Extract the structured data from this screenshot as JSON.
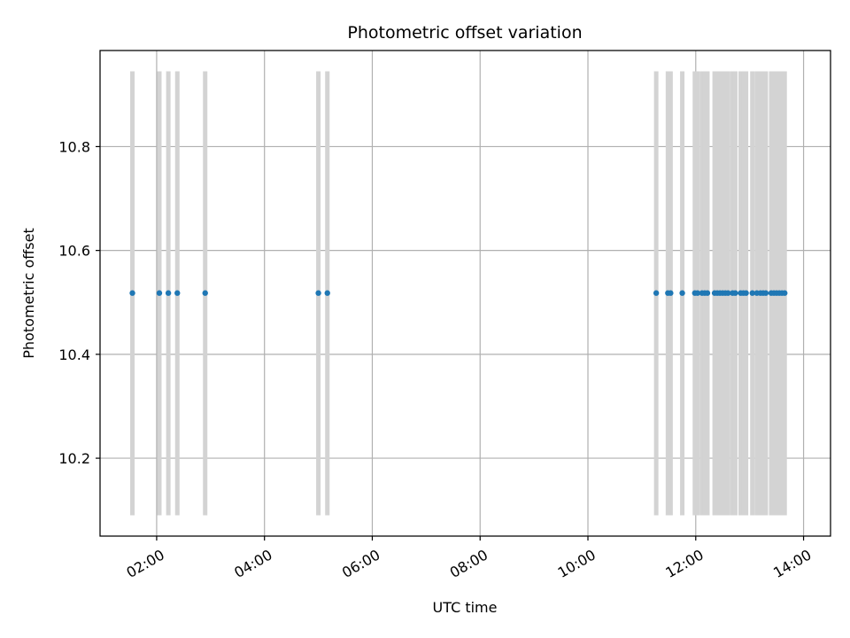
{
  "chart_data": {
    "type": "scatter",
    "title": "Photometric offset variation",
    "xlabel": "UTC time",
    "ylabel": "Photometric offset",
    "x_format": "HH:MM",
    "xlim": [
      "00:57",
      "14:30"
    ],
    "ylim": [
      10.05,
      10.985
    ],
    "x_ticks": [
      "02:00",
      "04:00",
      "06:00",
      "08:00",
      "10:00",
      "12:00",
      "14:00"
    ],
    "y_ticks": [
      10.2,
      10.4,
      10.6,
      10.8
    ],
    "y_tick_labels": [
      "10.2",
      "10.4",
      "10.6",
      "10.8"
    ],
    "grid": true,
    "colors": {
      "points": "#1f77b4",
      "error_bars": "#d3d3d3",
      "grid": "#b0b0b0"
    },
    "series": [
      {
        "points": [
          {
            "x": "01:33",
            "y": 10.518,
            "y_low": 10.09,
            "y_high": 10.945
          },
          {
            "x": "02:03",
            "y": 10.518,
            "y_low": 10.09,
            "y_high": 10.945
          },
          {
            "x": "02:13",
            "y": 10.518,
            "y_low": 10.09,
            "y_high": 10.945
          },
          {
            "x": "02:23",
            "y": 10.518,
            "y_low": 10.09,
            "y_high": 10.945
          },
          {
            "x": "02:54",
            "y": 10.518,
            "y_low": 10.09,
            "y_high": 10.945
          },
          {
            "x": "05:00",
            "y": 10.518,
            "y_low": 10.09,
            "y_high": 10.945
          },
          {
            "x": "05:10",
            "y": 10.518,
            "y_low": 10.09,
            "y_high": 10.945
          },
          {
            "x": "11:16",
            "y": 10.518,
            "y_low": 10.09,
            "y_high": 10.945
          },
          {
            "x": "11:29",
            "y": 10.518,
            "y_low": 10.09,
            "y_high": 10.945
          },
          {
            "x": "11:32",
            "y": 10.518,
            "y_low": 10.09,
            "y_high": 10.945
          },
          {
            "x": "11:45",
            "y": 10.518,
            "y_low": 10.09,
            "y_high": 10.945
          },
          {
            "x": "11:59",
            "y": 10.518,
            "y_low": 10.09,
            "y_high": 10.945
          },
          {
            "x": "12:02",
            "y": 10.518,
            "y_low": 10.09,
            "y_high": 10.945
          },
          {
            "x": "12:07",
            "y": 10.518,
            "y_low": 10.09,
            "y_high": 10.945
          },
          {
            "x": "12:10",
            "y": 10.518,
            "y_low": 10.09,
            "y_high": 10.945
          },
          {
            "x": "12:13",
            "y": 10.518,
            "y_low": 10.09,
            "y_high": 10.945
          },
          {
            "x": "12:21",
            "y": 10.518,
            "y_low": 10.09,
            "y_high": 10.945
          },
          {
            "x": "12:24",
            "y": 10.518,
            "y_low": 10.09,
            "y_high": 10.945
          },
          {
            "x": "12:27",
            "y": 10.518,
            "y_low": 10.09,
            "y_high": 10.945
          },
          {
            "x": "12:30",
            "y": 10.518,
            "y_low": 10.09,
            "y_high": 10.945
          },
          {
            "x": "12:33",
            "y": 10.518,
            "y_low": 10.09,
            "y_high": 10.945
          },
          {
            "x": "12:36",
            "y": 10.518,
            "y_low": 10.09,
            "y_high": 10.945
          },
          {
            "x": "12:41",
            "y": 10.518,
            "y_low": 10.09,
            "y_high": 10.945
          },
          {
            "x": "12:44",
            "y": 10.518,
            "y_low": 10.09,
            "y_high": 10.945
          },
          {
            "x": "12:50",
            "y": 10.518,
            "y_low": 10.09,
            "y_high": 10.945
          },
          {
            "x": "12:53",
            "y": 10.518,
            "y_low": 10.09,
            "y_high": 10.945
          },
          {
            "x": "12:56",
            "y": 10.518,
            "y_low": 10.09,
            "y_high": 10.945
          },
          {
            "x": "13:03",
            "y": 10.518,
            "y_low": 10.09,
            "y_high": 10.945
          },
          {
            "x": "13:08",
            "y": 10.518,
            "y_low": 10.09,
            "y_high": 10.945
          },
          {
            "x": "13:12",
            "y": 10.518,
            "y_low": 10.09,
            "y_high": 10.945
          },
          {
            "x": "13:15",
            "y": 10.518,
            "y_low": 10.09,
            "y_high": 10.945
          },
          {
            "x": "13:18",
            "y": 10.518,
            "y_low": 10.09,
            "y_high": 10.945
          },
          {
            "x": "13:24",
            "y": 10.518,
            "y_low": 10.09,
            "y_high": 10.945
          },
          {
            "x": "13:27",
            "y": 10.518,
            "y_low": 10.09,
            "y_high": 10.945
          },
          {
            "x": "13:30",
            "y": 10.518,
            "y_low": 10.09,
            "y_high": 10.945
          },
          {
            "x": "13:33",
            "y": 10.518,
            "y_low": 10.09,
            "y_high": 10.945
          },
          {
            "x": "13:36",
            "y": 10.518,
            "y_low": 10.09,
            "y_high": 10.945
          },
          {
            "x": "13:39",
            "y": 10.518,
            "y_low": 10.09,
            "y_high": 10.945
          }
        ]
      }
    ]
  }
}
